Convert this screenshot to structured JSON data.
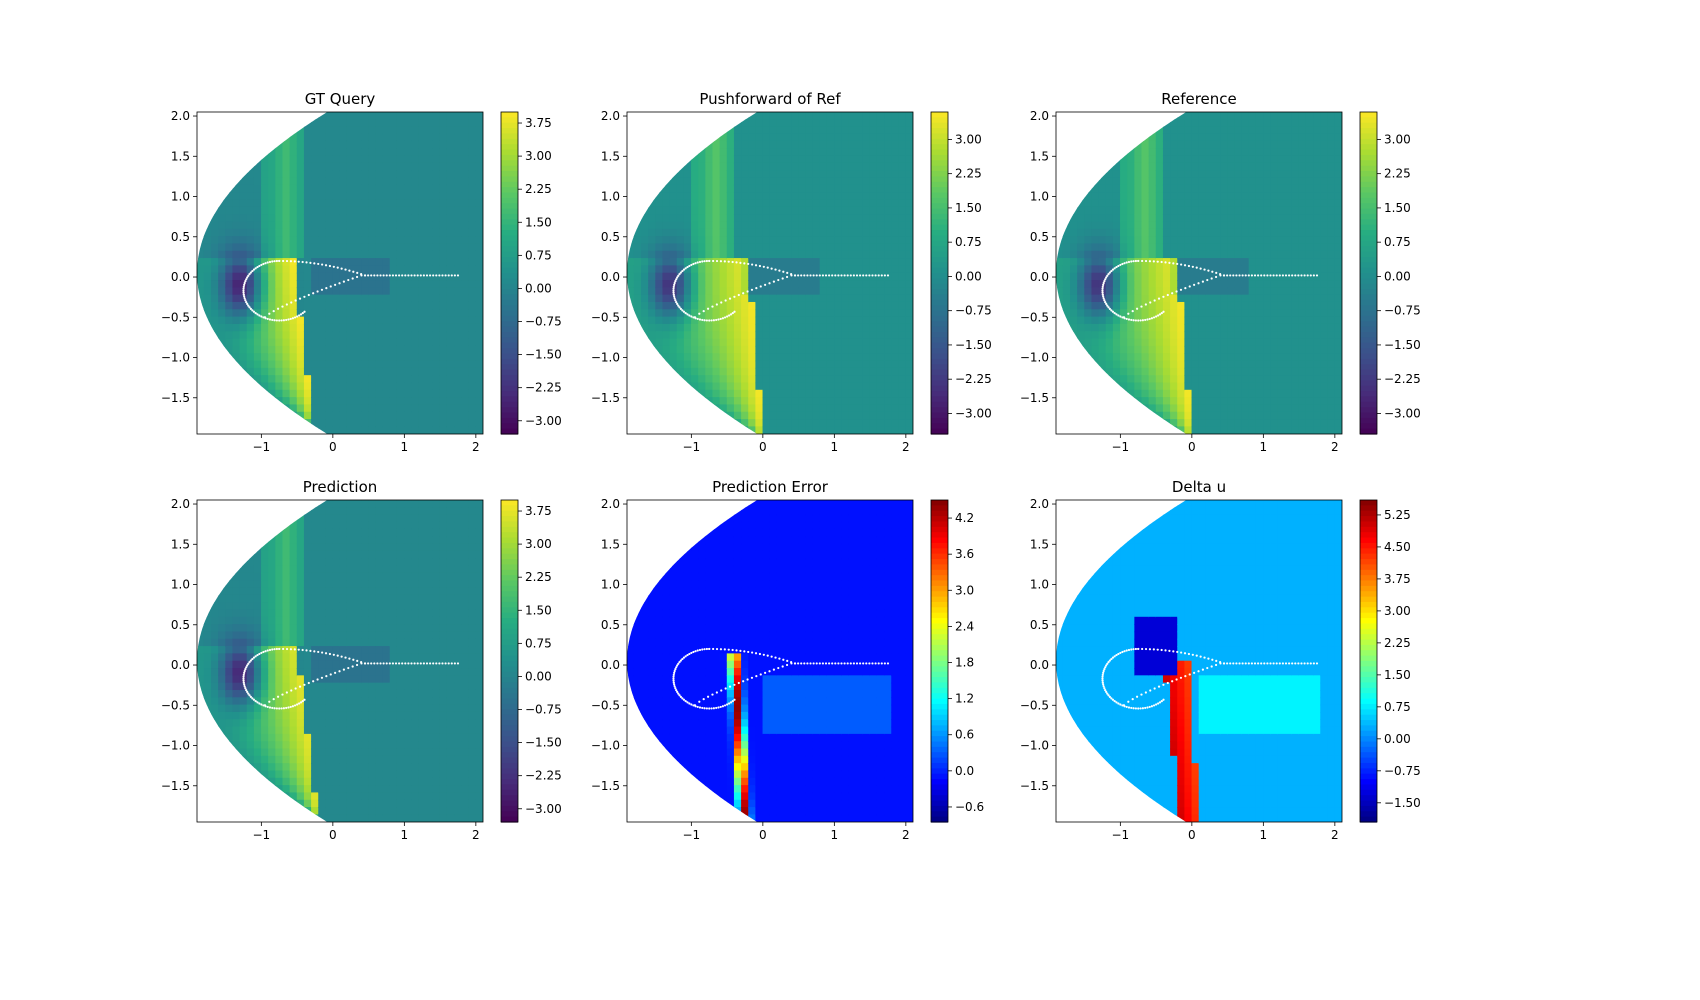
{
  "figure": {
    "background": "#ffffff",
    "layout": "2x3 grid of contour plots with colorbars"
  },
  "chart_data": [
    {
      "type": "heatmap",
      "title": "GT Query",
      "colormap": "viridis",
      "xlabel": "",
      "ylabel": "",
      "xlim": [
        -1.9,
        2.1
      ],
      "ylim": [
        -1.95,
        2.05
      ],
      "xticks": [
        "−1",
        "0",
        "1",
        "2"
      ],
      "yticks": [
        "2.0",
        "1.5",
        "1.0",
        "0.5",
        "0.0",
        "−0.5",
        "−1.0",
        "−1.5"
      ],
      "colorbar": {
        "range": [
          -3.3,
          4.0
        ],
        "ticks": [
          "3.75",
          "3.00",
          "2.25",
          "1.50",
          "0.75",
          "0.00",
          "−0.75",
          "−1.50",
          "−2.25",
          "−3.00"
        ]
      },
      "field": {
        "background": 0.1,
        "shock_x_top": -0.55,
        "shock_x_bottom": -0.25,
        "shock_peak": 3.9,
        "leading_edge_min": -2.6
      }
    },
    {
      "type": "heatmap",
      "title": "Pushforward of Ref",
      "colormap": "viridis",
      "xlabel": "",
      "ylabel": "",
      "xlim": [
        -1.9,
        2.1
      ],
      "ylim": [
        -1.95,
        2.05
      ],
      "xticks": [
        "−1",
        "0",
        "1",
        "2"
      ],
      "yticks": [
        "2.0",
        "1.5",
        "1.0",
        "0.5",
        "0.0",
        "−0.5",
        "−1.0",
        "−1.5"
      ],
      "colorbar": {
        "range": [
          -3.45,
          3.6
        ],
        "ticks": [
          "3.00",
          "2.25",
          "1.50",
          "0.75",
          "0.00",
          "−0.75",
          "−1.50",
          "−2.25",
          "−3.00"
        ]
      },
      "field": {
        "background": 0.1,
        "shock_x_top": -0.2,
        "shock_x_bottom": 0.0,
        "shock_peak": 3.5,
        "leading_edge_min": -2.4
      }
    },
    {
      "type": "heatmap",
      "title": "Reference",
      "colormap": "viridis",
      "xlabel": "",
      "ylabel": "",
      "xlim": [
        -1.9,
        2.1
      ],
      "ylim": [
        -1.95,
        2.05
      ],
      "xticks": [
        "−1",
        "0",
        "1",
        "2"
      ],
      "yticks": [
        "2.0",
        "1.5",
        "1.0",
        "0.5",
        "0.0",
        "−0.5",
        "−1.0",
        "−1.5"
      ],
      "colorbar": {
        "range": [
          -3.45,
          3.6
        ],
        "ticks": [
          "3.00",
          "2.25",
          "1.50",
          "0.75",
          "0.00",
          "−0.75",
          "−1.50",
          "−2.25",
          "−3.00"
        ]
      },
      "field": {
        "background": 0.1,
        "shock_x_top": -0.2,
        "shock_x_bottom": 0.0,
        "shock_peak": 3.5,
        "leading_edge_min": -2.4
      }
    },
    {
      "type": "heatmap",
      "title": "Prediction",
      "colormap": "viridis",
      "xlabel": "",
      "ylabel": "",
      "xlim": [
        -1.9,
        2.1
      ],
      "ylim": [
        -1.95,
        2.05
      ],
      "xticks": [
        "−1",
        "0",
        "1",
        "2"
      ],
      "yticks": [
        "2.0",
        "1.5",
        "1.0",
        "0.5",
        "0.0",
        "−0.5",
        "−1.0",
        "−1.5"
      ],
      "colorbar": {
        "range": [
          -3.3,
          4.0
        ],
        "ticks": [
          "3.75",
          "3.00",
          "2.25",
          "1.50",
          "0.75",
          "0.00",
          "−0.75",
          "−1.50",
          "−2.25",
          "−3.00"
        ]
      },
      "field": {
        "background": 0.1,
        "shock_x_top": -0.5,
        "shock_x_bottom": -0.2,
        "shock_peak": 3.7,
        "leading_edge_min": -2.5,
        "smooth": true
      }
    },
    {
      "type": "heatmap",
      "title": "Prediction Error",
      "colormap": "jet",
      "xlabel": "",
      "ylabel": "",
      "xlim": [
        -1.9,
        2.1
      ],
      "ylim": [
        -1.95,
        2.05
      ],
      "xticks": [
        "−1",
        "0",
        "1",
        "2"
      ],
      "yticks": [
        "2.0",
        "1.5",
        "1.0",
        "0.5",
        "0.0",
        "−0.5",
        "−1.0",
        "−1.5"
      ],
      "colorbar": {
        "range": [
          -0.85,
          4.5
        ],
        "ticks": [
          "4.2",
          "3.6",
          "3.0",
          "2.4",
          "1.8",
          "1.2",
          "0.6",
          "0.0",
          "−0.6"
        ]
      },
      "field": {
        "background": -0.1,
        "band_x_top": -0.4,
        "band_x_bottom": -0.25,
        "band_peak": 4.4
      }
    },
    {
      "type": "heatmap",
      "title": "Delta u",
      "colormap": "jet",
      "xlabel": "",
      "ylabel": "",
      "xlim": [
        -1.9,
        2.1
      ],
      "ylim": [
        -1.95,
        2.05
      ],
      "xticks": [
        "−1",
        "0",
        "1",
        "2"
      ],
      "yticks": [
        "2.0",
        "1.5",
        "1.0",
        "0.5",
        "0.0",
        "−0.5",
        "−1.0",
        "−1.5"
      ],
      "colorbar": {
        "range": [
          -1.95,
          5.6
        ],
        "ticks": [
          "5.25",
          "4.50",
          "3.75",
          "3.00",
          "2.25",
          "1.50",
          "0.75",
          "0.00",
          "−0.75",
          "−1.50"
        ]
      },
      "field": {
        "background": 0.3,
        "band_x_left_top": -0.4,
        "band_x_right_top": -0.05,
        "band_x_left_bottom": -0.15,
        "band_x_right_bottom": 0.1,
        "band_peak": 5.0
      }
    }
  ],
  "airfoil_outline": {
    "color": "#ffffff",
    "note_points": "white dotted outline drawn over each plot"
  }
}
